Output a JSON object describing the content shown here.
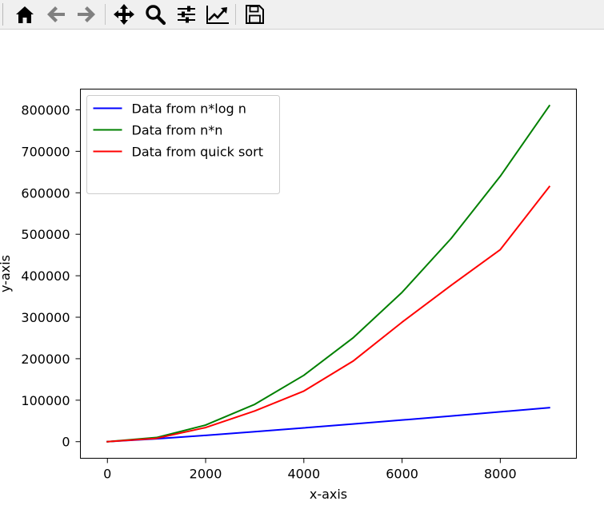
{
  "toolbar": {
    "buttons": [
      {
        "name": "home-icon"
      },
      {
        "name": "back-arrow-icon"
      },
      {
        "name": "forward-arrow-icon"
      },
      {
        "name": "pan-move-icon"
      },
      {
        "name": "zoom-magnifier-icon"
      },
      {
        "name": "configure-subplots-icon"
      },
      {
        "name": "edit-axis-icon"
      },
      {
        "name": "save-floppy-icon"
      }
    ]
  },
  "chart_data": {
    "type": "line",
    "xlabel": "x-axis",
    "ylabel": "y-axis",
    "xlim": [
      -550,
      9550
    ],
    "ylim": [
      -40000,
      850000
    ],
    "xticks": [
      0,
      2000,
      4000,
      6000,
      8000
    ],
    "yticks": [
      0,
      100000,
      200000,
      300000,
      400000,
      500000,
      600000,
      700000,
      800000
    ],
    "legend_position": "upper-left",
    "grid": false,
    "x": [
      0,
      1000,
      2000,
      3000,
      4000,
      5000,
      6000,
      7000,
      8000,
      9000
    ],
    "series": [
      {
        "name": "Data from n*log n",
        "color": "#0000ff",
        "values": [
          0,
          6908,
          15202,
          24019,
          33176,
          42586,
          52197,
          61967,
          71897,
          81946
        ]
      },
      {
        "name": "Data from n*n",
        "color": "#008000",
        "values": [
          0,
          10000,
          40000,
          90000,
          160000,
          250000,
          360000,
          490000,
          640000,
          810000
        ]
      },
      {
        "name": "Data from quick sort",
        "color": "#ff0000",
        "values": [
          0,
          8000,
          34000,
          74000,
          122000,
          194000,
          288000,
          377000,
          463000,
          615000
        ]
      }
    ]
  }
}
